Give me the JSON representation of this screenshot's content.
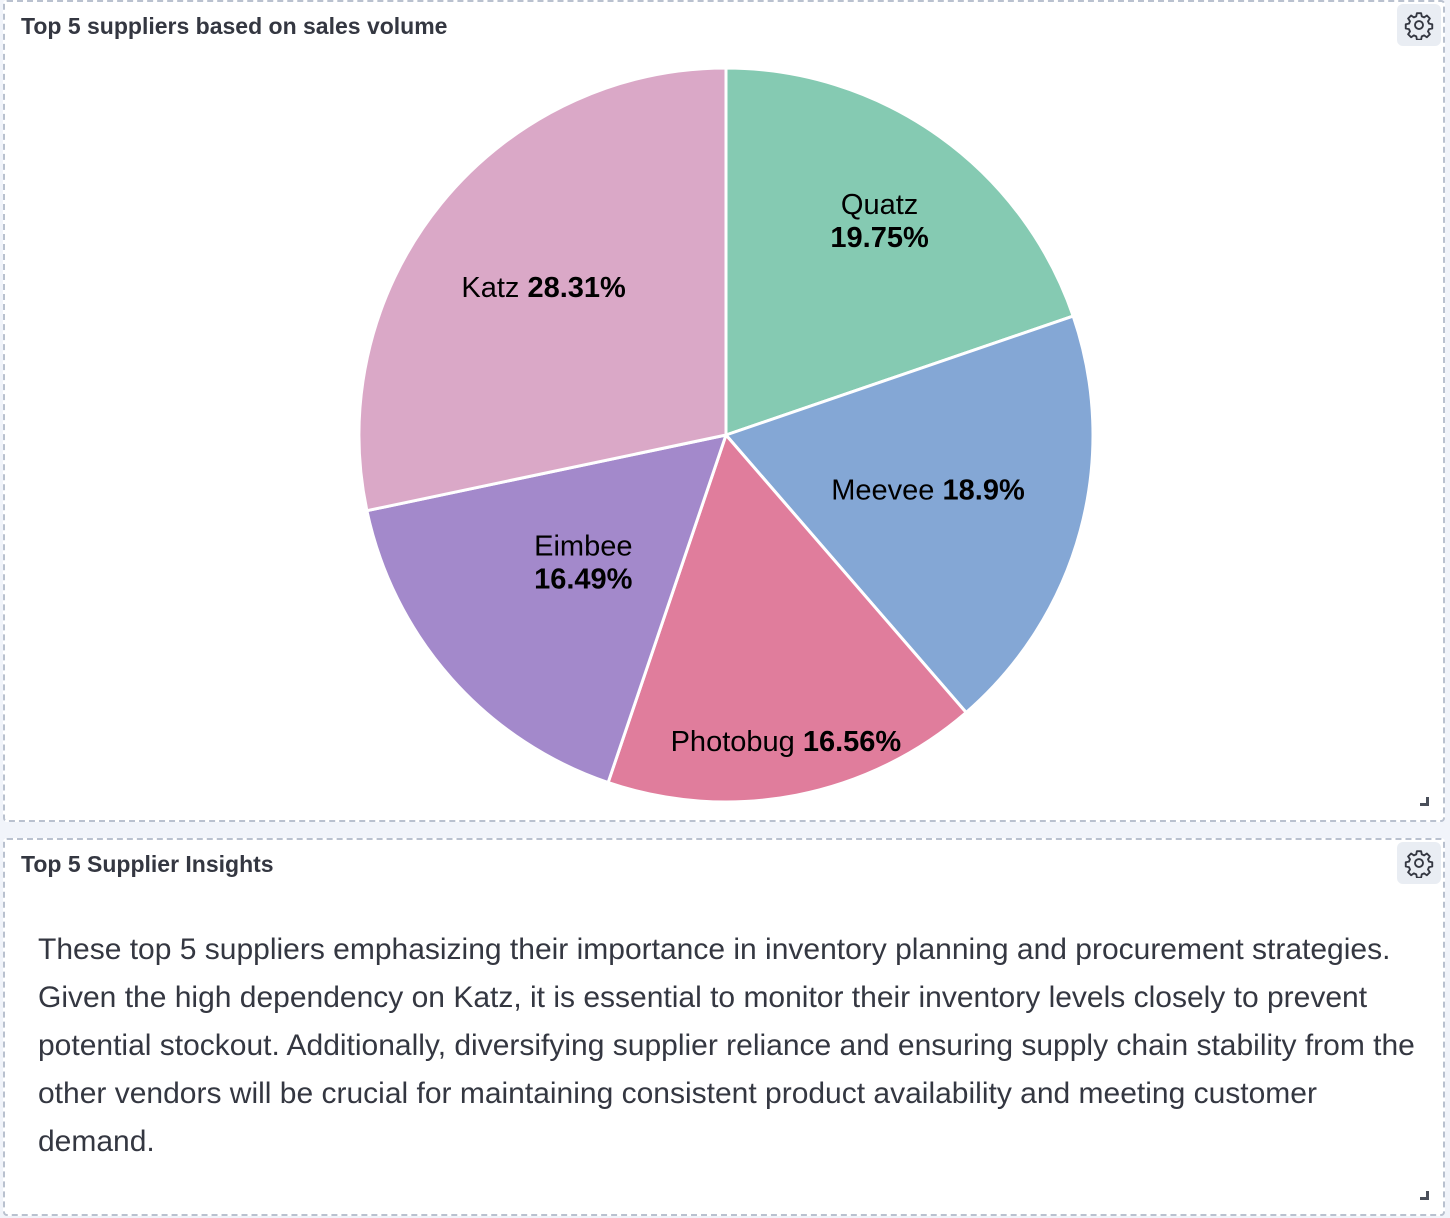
{
  "chart_panel": {
    "title": "Top 5 suppliers based on sales volume",
    "settings_icon": "gear-icon"
  },
  "chart_data": {
    "type": "pie",
    "title": "Top 5 suppliers based on sales volume",
    "slices": [
      {
        "name": "Quatz",
        "value": 19.75,
        "label": "19.75%",
        "color": "#85cab2"
      },
      {
        "name": "Meevee",
        "value": 18.9,
        "label": "18.9%",
        "color": "#84a7d5"
      },
      {
        "name": "Photobug",
        "value": 16.56,
        "label": "16.56%",
        "color": "#e07d9c"
      },
      {
        "name": "Eimbee",
        "value": 16.49,
        "label": "16.49%",
        "color": "#a389cb"
      },
      {
        "name": "Katz",
        "value": 28.31,
        "label": "28.31%",
        "color": "#daa8c7"
      }
    ],
    "start_angle": "12 o'clock",
    "direction": "clockwise",
    "legend": "none"
  },
  "text_panel": {
    "title": "Top 5 Supplier Insights",
    "settings_icon": "gear-icon",
    "body": "These top 5 suppliers emphasizing their importance in inventory planning and procurement strategies. Given the high dependency on Katz, it is essential to monitor their inventory levels closely to prevent potential stockout. Additionally, diversifying supplier reliance and ensuring supply chain stability from the other vendors will be crucial for maintaining consistent product availability and meeting customer demand."
  }
}
